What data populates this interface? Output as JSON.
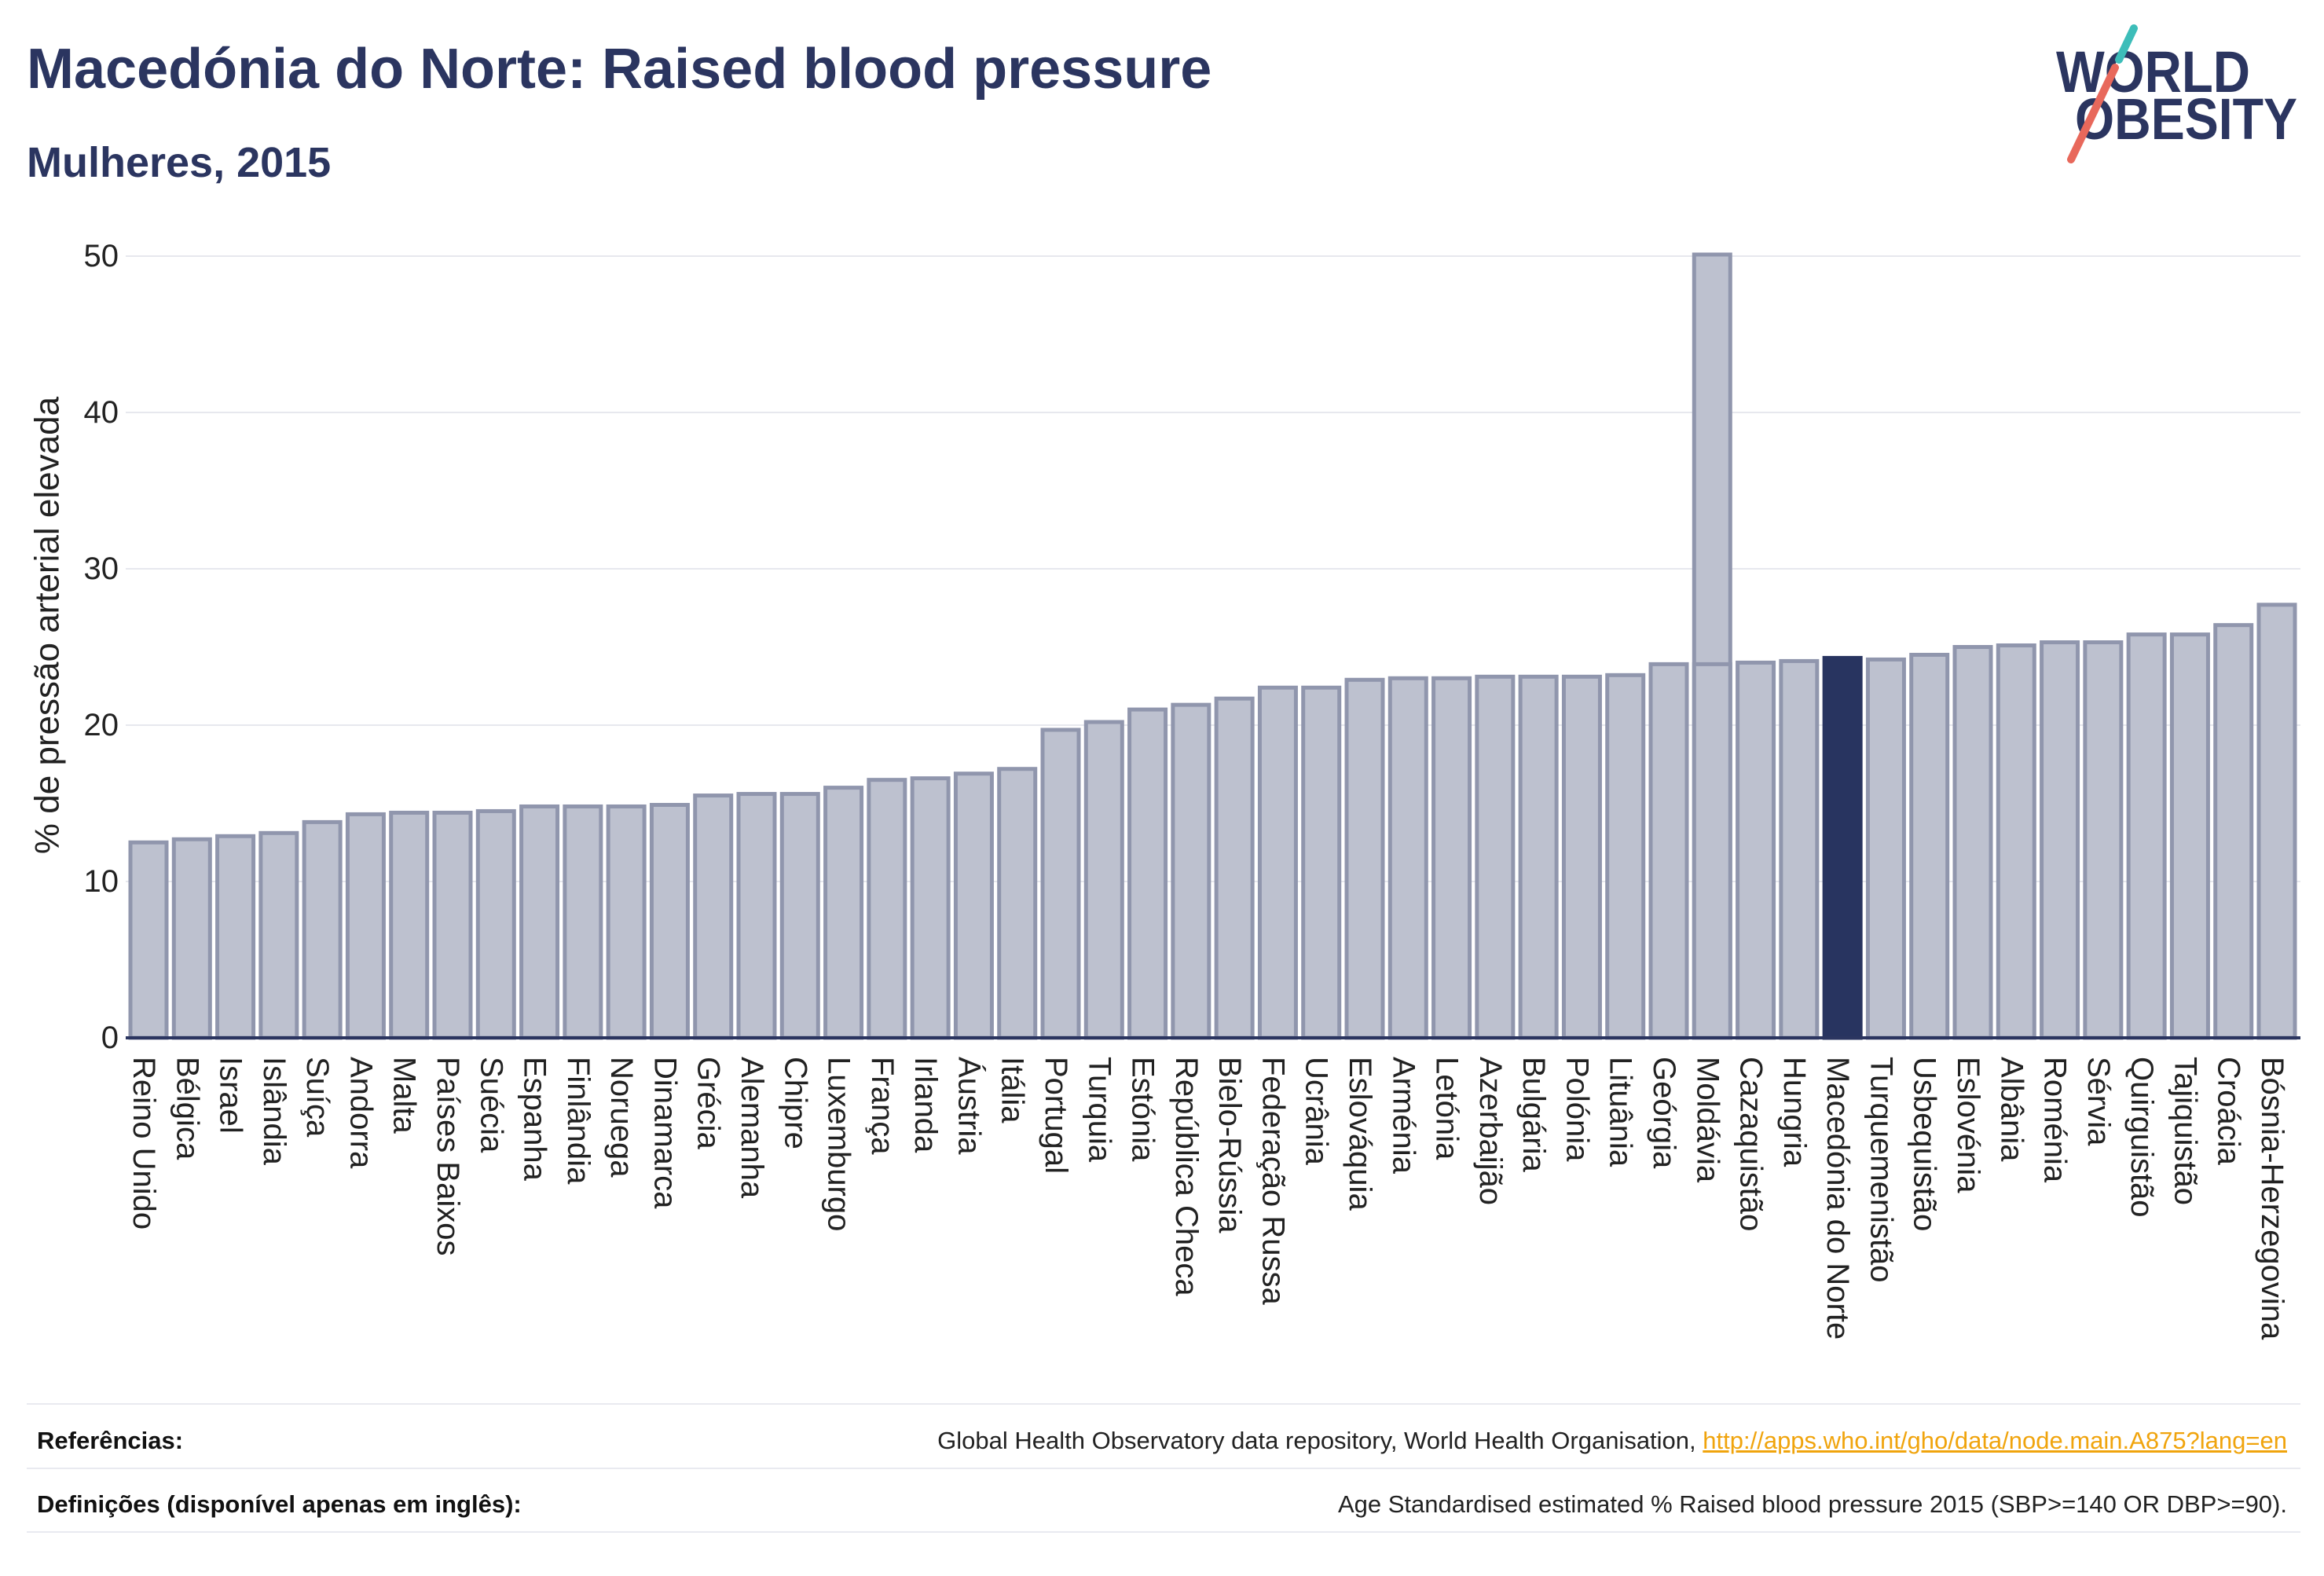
{
  "colors": {
    "brand": "#2b3560",
    "link": "#f0a40d"
  },
  "logo": {
    "line1": "WORLD",
    "line2": "OBESITY",
    "colors": {
      "text": "#2b3560",
      "slash_top": "#3dbdb9",
      "slash_bottom": "#e8685b"
    }
  },
  "chart_data": {
    "type": "bar",
    "title": "Macedónia do Norte: Raised blood pressure",
    "subtitle": "Mulheres, 2015",
    "ylabel": "% de pressão arterial elevada",
    "ylim": [
      0,
      50
    ],
    "yticks": [
      0,
      10,
      20,
      30,
      40,
      50
    ],
    "grid": true,
    "categories": [
      "Reino Unido",
      "Bélgica",
      "Israel",
      "Islândia",
      "Suíça",
      "Andorra",
      "Malta",
      "Países Baixos",
      "Suécia",
      "Espanha",
      "Finlândia",
      "Noruega",
      "Dinamarca",
      "Grécia",
      "Alemanha",
      "Chipre",
      "Luxemburgo",
      "França",
      "Irlanda",
      "Áustria",
      "Itália",
      "Portugal",
      "Turquia",
      "Estónia",
      "República Checa",
      "Bielo-Rússia",
      "Federação Russa",
      "Ucrânia",
      "Eslováquia",
      "Arménia",
      "Letónia",
      "Azerbaijão",
      "Bulgária",
      "Polónia",
      "Lituânia",
      "Geórgia",
      "Moldávia",
      "Cazaquistão",
      "Hungria",
      "Macedónia do Norte",
      "Turquemenistão",
      "Usbequistão",
      "Eslovénia",
      "Albânia",
      "Roménia",
      "Sérvia",
      "Quirguistão",
      "Tajiquistão",
      "Croácia",
      "Bósnia-Herzegovina"
    ],
    "series": [
      {
        "values": [
          12.5,
          12.7,
          12.9,
          13.1,
          13.8,
          14.3,
          14.4,
          14.4,
          14.5,
          14.8,
          14.8,
          14.8,
          14.9,
          15.5,
          15.6,
          15.6,
          16.0,
          16.5,
          16.6,
          16.9,
          17.2,
          19.7,
          20.2,
          21.0,
          21.3,
          21.7,
          22.4,
          22.4,
          22.9,
          23.0,
          23.0,
          23.1,
          23.1,
          23.1,
          23.2,
          23.9,
          23.9,
          24.0,
          24.1,
          24.3,
          24.2,
          24.5,
          25.0,
          25.1,
          25.3,
          25.3,
          25.8,
          25.8,
          26.4,
          27.7
        ]
      },
      {
        "values": [
          null,
          null,
          null,
          null,
          null,
          null,
          null,
          null,
          null,
          null,
          null,
          null,
          null,
          null,
          null,
          null,
          null,
          null,
          null,
          null,
          null,
          null,
          null,
          null,
          null,
          null,
          null,
          null,
          null,
          null,
          null,
          null,
          null,
          null,
          null,
          null,
          50.1,
          null,
          null,
          null,
          null,
          null,
          null,
          null,
          null,
          null,
          null,
          null,
          null,
          null
        ]
      }
    ],
    "highlight_index": 39,
    "colors": {
      "bar_fill": "#bdc1cf",
      "bar_stroke": "#9096ad",
      "highlight": "#283460",
      "baseline": "#2b3560",
      "grid": "#e7e8ee"
    }
  },
  "footer": {
    "references_label": "Referências:",
    "references_text": "Global Health Observatory data repository, World Health Organisation,",
    "references_link": "http://apps.who.int/gho/data/node.main.A875?lang=en",
    "definitions_label": "Definições (disponível apenas em inglês):",
    "definitions_text": "Age Standardised estimated % Raised blood pressure 2015 (SBP>=140 OR DBP>=90)."
  }
}
